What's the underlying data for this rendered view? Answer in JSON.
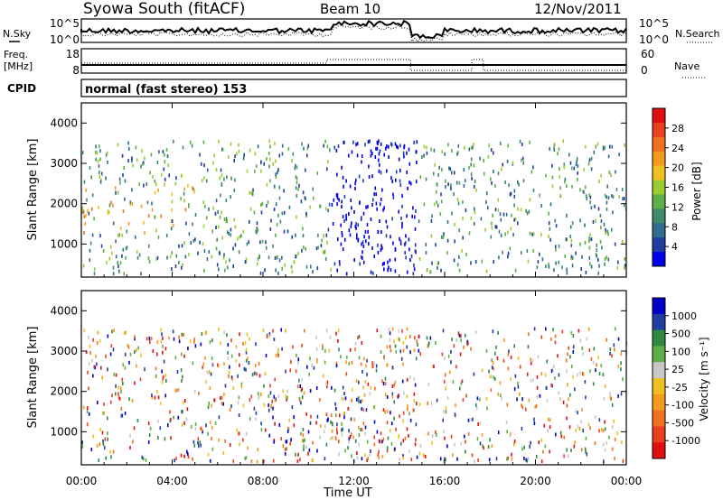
{
  "header": {
    "station": "Syowa South (fitACF)",
    "beam": "Beam 10",
    "date": "12/Nov/2011"
  },
  "noise_panel": {
    "left_label": "N.Sky",
    "right_label": "N.Search",
    "ticks_left": [
      "10^5",
      "10^0"
    ],
    "ticks_right": [
      "10^5",
      "10^0"
    ]
  },
  "freq_panel": {
    "left_label_1": "Freq.",
    "left_label_2": "[MHz]",
    "ticks_left": [
      "18",
      "8"
    ],
    "right_label": "Nave",
    "ticks_right": [
      "60",
      "0"
    ]
  },
  "cpid_panel": {
    "label": "CPID",
    "text": "normal (fast stereo) 153"
  },
  "axes": {
    "ylabel": "Slant Range [km]",
    "xlabel": "Time UT",
    "xticks": [
      "00:00",
      "04:00",
      "08:00",
      "12:00",
      "16:00",
      "20:00",
      "00:00"
    ],
    "yticks": [
      "1000",
      "2000",
      "3000",
      "4000"
    ]
  },
  "colors": {
    "power": [
      "#0000e6",
      "#1e3fa0",
      "#2f6d8e",
      "#3f8a6a",
      "#5fae48",
      "#9acd32",
      "#f0c020",
      "#f59a20",
      "#f07020",
      "#e84020",
      "#e01010"
    ],
    "velocity": [
      "#e01010",
      "#e84020",
      "#f07020",
      "#f59a20",
      "#f0c020",
      "#c8c8c8",
      "#5fae48",
      "#2f8a3f",
      "#1e3fa0",
      "#0000c8"
    ]
  },
  "chart_data": [
    {
      "type": "heatmap",
      "name": "power",
      "xlim_hours": [
        0,
        24
      ],
      "ylim_km": [
        180,
        4500
      ],
      "colorbar_label": "Power [dB]",
      "colorbar_ticks": [
        "4",
        "8",
        "12",
        "16",
        "20",
        "24",
        "28"
      ],
      "colorbar_range": [
        0,
        30
      ]
    },
    {
      "type": "heatmap",
      "name": "velocity",
      "xlim_hours": [
        0,
        24
      ],
      "ylim_km": [
        180,
        4500
      ],
      "colorbar_label": "Velocity [m s⁻¹]",
      "colorbar_ticks": [
        "1000",
        "500",
        "100",
        "25",
        "-25",
        "-100",
        "-500",
        "-1000"
      ]
    }
  ]
}
